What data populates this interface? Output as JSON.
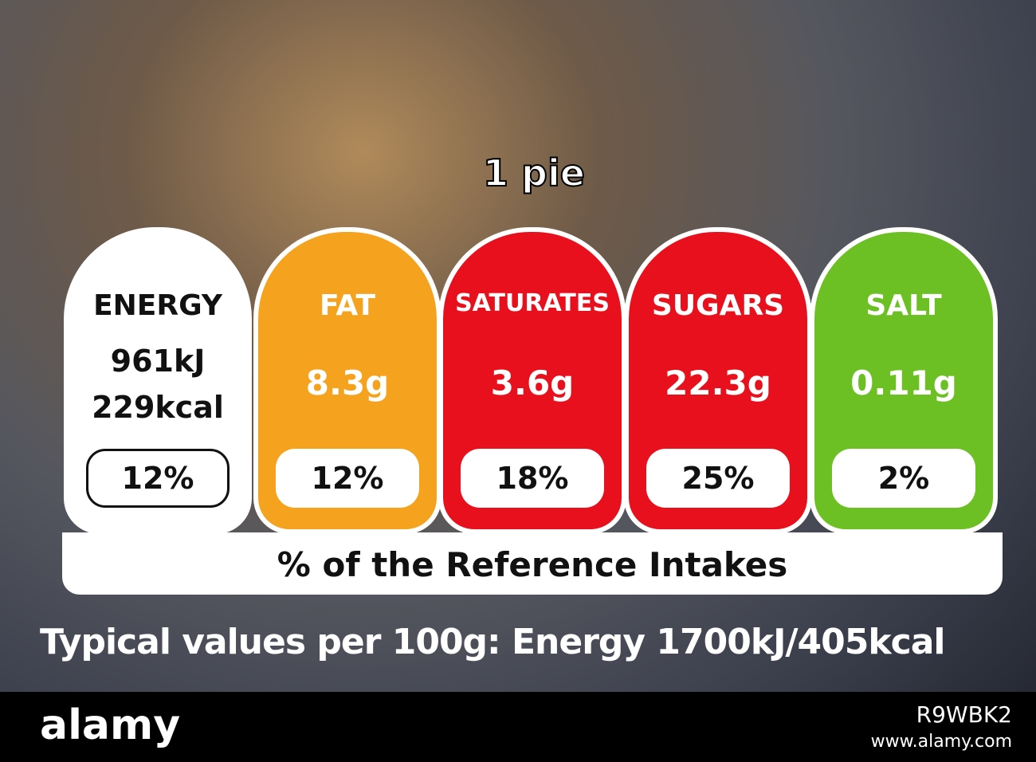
{
  "serving": "1 pie",
  "columns": [
    {
      "name": "ENERGY",
      "amounts": [
        "961kJ",
        "229kcal"
      ],
      "percent": "12%",
      "color": "#ffffff"
    },
    {
      "name": "FAT",
      "amounts": [
        "8.3g"
      ],
      "percent": "12%",
      "color": "#f5a31f"
    },
    {
      "name": "SATURATES",
      "amounts": [
        "3.6g"
      ],
      "percent": "18%",
      "color": "#e8101c"
    },
    {
      "name": "SUGARS",
      "amounts": [
        "22.3g"
      ],
      "percent": "25%",
      "color": "#e8101c"
    },
    {
      "name": "SALT",
      "amounts": [
        "0.11g"
      ],
      "percent": "2%",
      "color": "#6cc024"
    }
  ],
  "reference_note": "% of the Reference Intakes",
  "typical_values": "Typical values per 100g: Energy 1700kJ/405kcal",
  "watermark": {
    "brand": "alamy",
    "image_id": "R9WBK2",
    "url": "www.alamy.com"
  }
}
